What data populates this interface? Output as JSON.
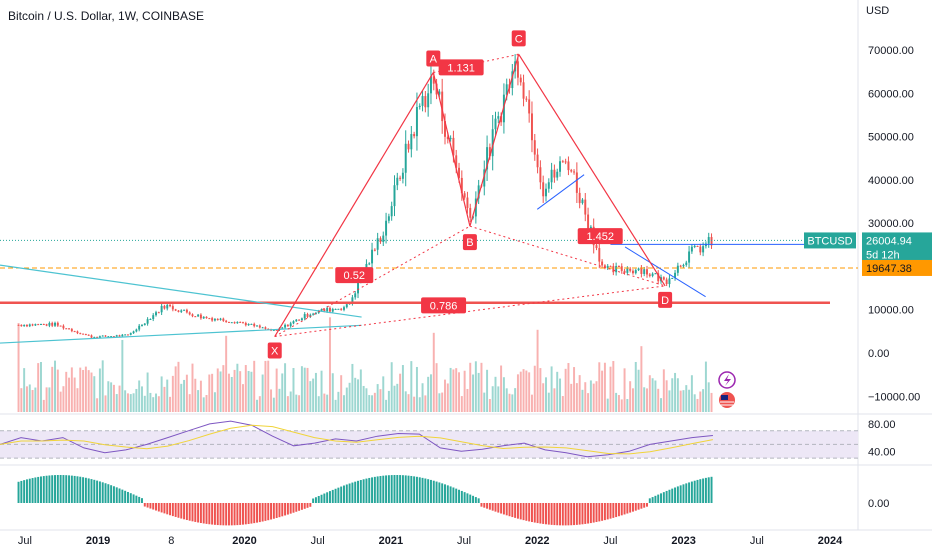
{
  "header": {
    "title": "Bitcoin / U.S. Dollar, 1W, COINBASE",
    "currency": "USD"
  },
  "colors": {
    "up": "#26a69a",
    "down": "#ef5350",
    "harmonic": "#f23645",
    "cyan_line": "#4dc3d1",
    "blue_line": "#2962ff",
    "orange_level": "#ff9800",
    "rsi_line": "#7e57c2",
    "rsi_ma": "#f0d43a",
    "rsi_band": "#ede7f6"
  },
  "chart_data": [
    {
      "type": "candlestick",
      "panel": "price",
      "title": "Bitcoin / U.S. Dollar, 1W, COINBASE",
      "y_axis_unit": "USD",
      "y_ticks": [
        -10000,
        0,
        10000,
        20000,
        30000,
        40000,
        50000,
        60000,
        70000
      ],
      "y_tick_labels": [
        "−10000.00",
        "0.00",
        "10000.00",
        "20000.00",
        "30000.00",
        "40000.00",
        "50000.00",
        "60000.00",
        "70000.00"
      ],
      "x_tick_labels": [
        "Jul",
        "2019",
        "8",
        "2020",
        "Jul",
        "2021",
        "Jul",
        "2022",
        "Jul",
        "2023",
        "Jul",
        "2024"
      ],
      "approx_closes": [
        {
          "date": "2018-06",
          "close": 6500
        },
        {
          "date": "2018-09",
          "close": 6600
        },
        {
          "date": "2018-12",
          "close": 3700
        },
        {
          "date": "2019-03",
          "close": 4100
        },
        {
          "date": "2019-06",
          "close": 11000
        },
        {
          "date": "2019-09",
          "close": 8300
        },
        {
          "date": "2019-12",
          "close": 7200
        },
        {
          "date": "2020-03",
          "close": 5000
        },
        {
          "date": "2020-06",
          "close": 9300
        },
        {
          "date": "2020-09",
          "close": 10800
        },
        {
          "date": "2020-12",
          "close": 29000
        },
        {
          "date": "2021-03",
          "close": 58000
        },
        {
          "date": "2021-04",
          "close": 63000
        },
        {
          "date": "2021-07",
          "close": 31000
        },
        {
          "date": "2021-10",
          "close": 61000
        },
        {
          "date": "2021-11",
          "close": 68000
        },
        {
          "date": "2022-01",
          "close": 38000
        },
        {
          "date": "2022-03",
          "close": 45000
        },
        {
          "date": "2022-06",
          "close": 19000
        },
        {
          "date": "2022-09",
          "close": 19500
        },
        {
          "date": "2022-11",
          "close": 16500
        },
        {
          "date": "2023-01",
          "close": 23000
        },
        {
          "date": "2023-03",
          "close": 26004.94
        }
      ],
      "last_price": {
        "symbol": "BTCUSD",
        "value": "26004.94",
        "countdown": "5d 12h"
      },
      "level_label": "19647.38",
      "harmonic_points": [
        {
          "label": "X",
          "date": "2020-03",
          "price": 3800
        },
        {
          "label": "A",
          "date": "2021-04",
          "price": 64800
        },
        {
          "label": "B",
          "date": "2021-07",
          "price": 29300
        },
        {
          "label": "C",
          "date": "2021-11",
          "price": 69000
        },
        {
          "label": "D",
          "date": "2022-11",
          "price": 15500
        }
      ],
      "ratios": [
        "0.52",
        "1.131",
        "1.452",
        "0.786"
      ],
      "horizontal_levels": [
        11600,
        19647.38,
        25100
      ]
    },
    {
      "type": "line",
      "panel": "rsi",
      "y_tick_labels": [
        "80.00",
        "40.00"
      ],
      "band": [
        30,
        70
      ],
      "series": [
        {
          "values": [
            50,
            60,
            55,
            60,
            45,
            38,
            42,
            50,
            60,
            70,
            80,
            84,
            78,
            62,
            48,
            52,
            58,
            55,
            62,
            66,
            65,
            45,
            40,
            43,
            48,
            52,
            42,
            38,
            32,
            35,
            40,
            50,
            55,
            60,
            63
          ]
        }
      ]
    },
    {
      "type": "bar",
      "panel": "oscillator",
      "y_tick_labels": [
        "0.00"
      ]
    }
  ]
}
